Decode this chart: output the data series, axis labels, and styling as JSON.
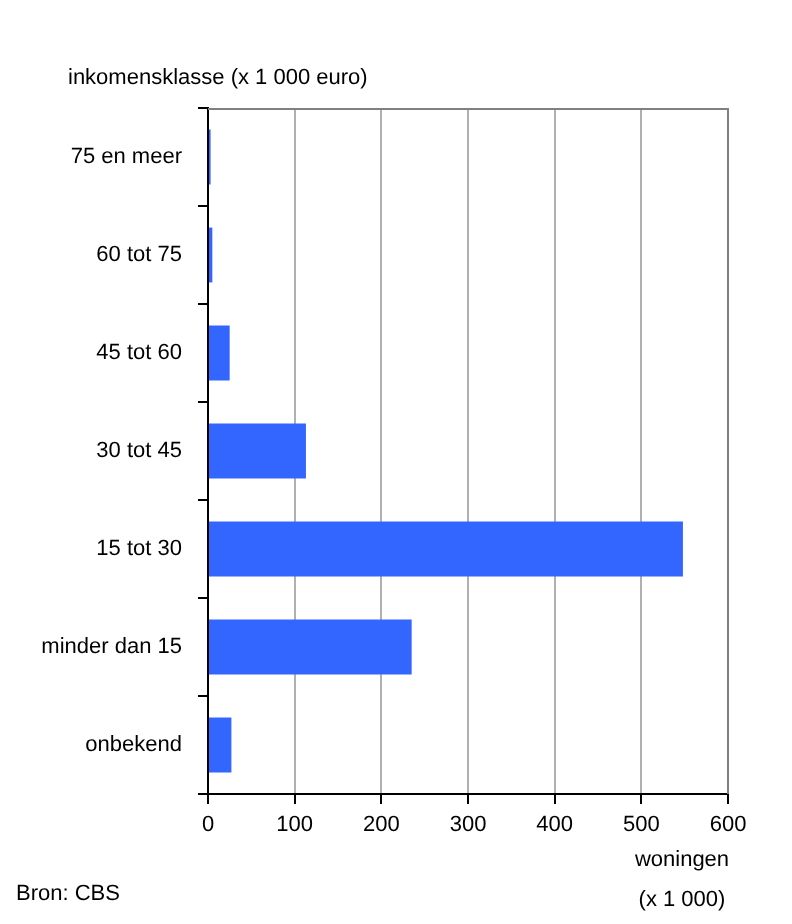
{
  "chart_data": {
    "type": "bar",
    "orientation": "horizontal",
    "ylabel": "inkomensklasse (x 1 000 euro)",
    "xlabel": "woningen (x 1 000)",
    "categories": [
      "75 en meer",
      "60 tot 75",
      "45 tot 60",
      "30 tot 45",
      "15 tot 30",
      "minder dan 15",
      "onbekend"
    ],
    "values": [
      3,
      5,
      25,
      113,
      548,
      235,
      27
    ],
    "color": "#3366ff",
    "xlim": [
      0,
      600
    ],
    "xticks": [
      0,
      100,
      200,
      300,
      400,
      500,
      600
    ],
    "grid": "x",
    "legend": false,
    "annotations": [
      "Bron: CBS"
    ]
  }
}
